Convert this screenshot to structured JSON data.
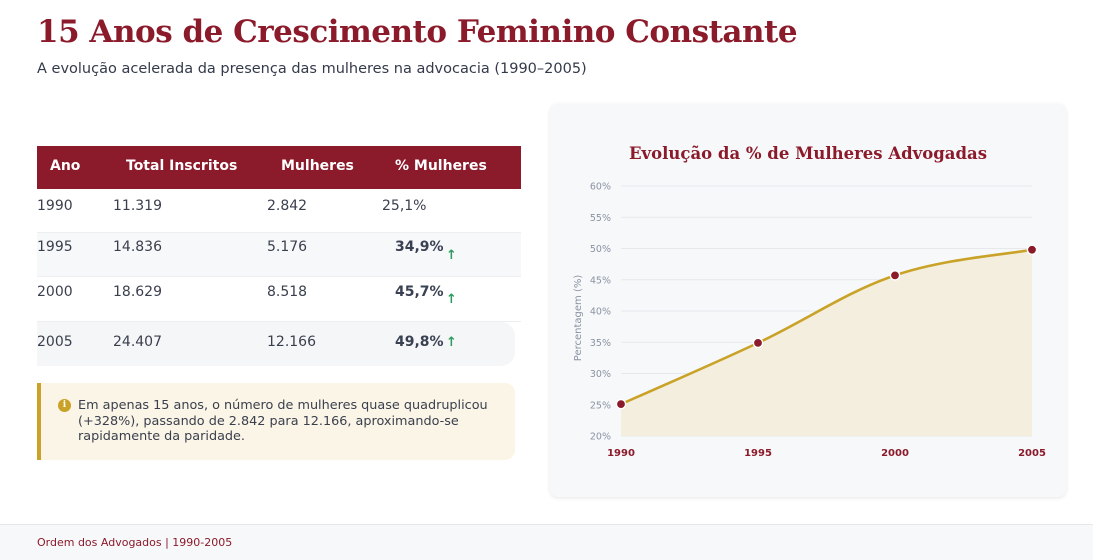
{
  "header": {
    "title": "15 Anos de Crescimento Feminino Constante",
    "subtitle": "A evolução acelerada da presença das mulheres na advocacia (1990–2005)"
  },
  "table": {
    "columns": [
      "Ano",
      "Total Inscritos",
      "Mulheres",
      "% Mulheres"
    ],
    "rows": [
      {
        "ano": "1990",
        "total": "11.319",
        "mulheres": "2.842",
        "pct": "25,1%",
        "trend": ""
      },
      {
        "ano": "1995",
        "total": "14.836",
        "mulheres": "5.176",
        "pct": "34,9%",
        "trend": "↑"
      },
      {
        "ano": "2000",
        "total": "18.629",
        "mulheres": "8.518",
        "pct": "45,7%",
        "trend": "↑"
      },
      {
        "ano": "2005",
        "total": "24.407",
        "mulheres": "12.166",
        "pct": "49,8%",
        "trend": "↑"
      }
    ]
  },
  "callout": {
    "icon": "info-icon",
    "text": "Em apenas 15 anos, o número de mulheres quase quadruplicou (+328%), passando de 2.842 para 12.166, aproximando-se rapidamente da paridade."
  },
  "chart_data": {
    "type": "area",
    "title": "Evolução da % de Mulheres Advogadas",
    "ylabel": "Percentagem (%)",
    "xlabel": "",
    "x": [
      "1990",
      "1995",
      "2000",
      "2005"
    ],
    "values": [
      25.1,
      34.9,
      45.7,
      49.8
    ],
    "ylim": [
      20,
      60
    ],
    "yticks": [
      "20%",
      "25%",
      "30%",
      "35%",
      "40%",
      "45%",
      "50%",
      "55%",
      "60%"
    ],
    "grid": true,
    "line_color": "#c9a227",
    "point_color": "#8b1a2b",
    "fill_color": "#f3eedd"
  },
  "footer": {
    "text": "Ordem dos Advogados | 1990-2005"
  }
}
